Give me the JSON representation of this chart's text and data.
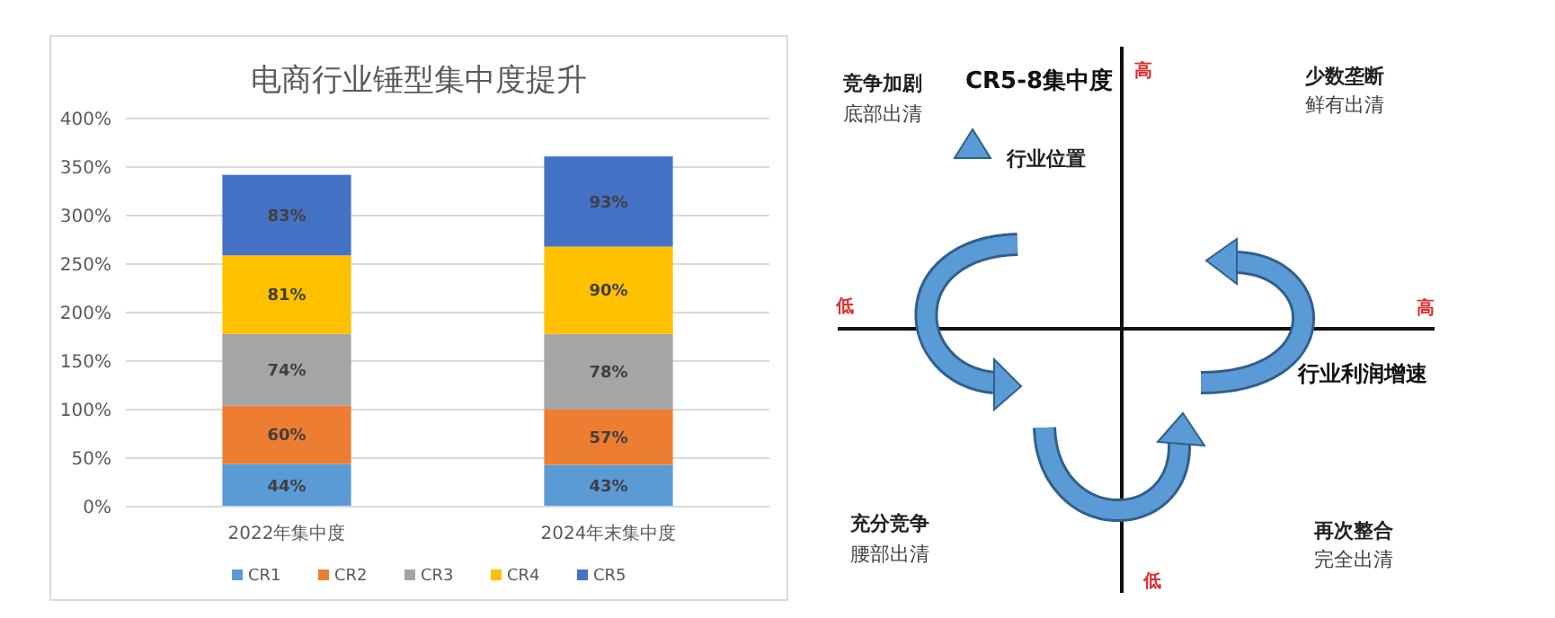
{
  "chart_data": [
    {
      "type": "bar",
      "stacked": true,
      "title": "电商行业锤型集中度提升",
      "categories": [
        "2022年集中度",
        "2024年末集中度"
      ],
      "ylim": [
        0,
        400
      ],
      "yticks": [
        {
          "value": 0,
          "label": "0%"
        },
        {
          "value": 50,
          "label": "50%"
        },
        {
          "value": 100,
          "label": "100%"
        },
        {
          "value": 150,
          "label": "150%"
        },
        {
          "value": 200,
          "label": "200%"
        },
        {
          "value": 250,
          "label": "250%"
        },
        {
          "value": 300,
          "label": "300%"
        },
        {
          "value": 350,
          "label": "350%"
        },
        {
          "value": 400,
          "label": "400%"
        }
      ],
      "grid": "y",
      "legend": "bottom",
      "series": [
        {
          "name": "CR1",
          "color": "#5b9bd5",
          "values": [
            44,
            43
          ],
          "value_labels": [
            "44%",
            "43%"
          ]
        },
        {
          "name": "CR2",
          "color": "#ed7d31",
          "values": [
            60,
            57
          ],
          "value_labels": [
            "60%",
            "57%"
          ]
        },
        {
          "name": "CR3",
          "color": "#a5a5a5",
          "values": [
            74,
            78
          ],
          "value_labels": [
            "74%",
            "78%"
          ]
        },
        {
          "name": "CR4",
          "color": "#ffc000",
          "values": [
            81,
            90
          ],
          "value_labels": [
            "81%",
            "90%"
          ]
        },
        {
          "name": "CR5",
          "color": "#4472c4",
          "values": [
            83,
            93
          ],
          "value_labels": [
            "83%",
            "93%"
          ]
        }
      ]
    },
    {
      "type": "other",
      "ylabel": "CR5-8集中度",
      "xlabel": "行业利润增速",
      "annotations": [
        "竞争加剧",
        "底部出清",
        "少数垄断",
        "鲜有出清",
        "充分竞争",
        "腰部出清",
        "再次整合",
        "完全出清",
        "行业位置",
        "高",
        "低",
        "低",
        "高"
      ]
    }
  ]
}
